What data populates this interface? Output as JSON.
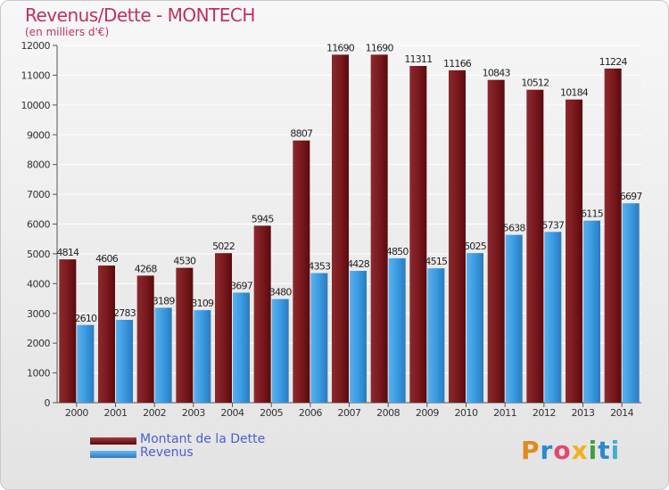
{
  "header": {
    "title": "Revenus/Dette - MONTECH",
    "subtitle": "(en milliers d'€)"
  },
  "legend": {
    "debt_label": "Montant de la Dette",
    "revenue_label": "Revenus"
  },
  "logo": {
    "text": "Proxiti"
  },
  "colors": {
    "debt": "#7a1a1e",
    "revenue": "#3a9be0",
    "title": "#c0305a"
  },
  "chart_data": {
    "type": "bar",
    "categories": [
      "2000",
      "2001",
      "2002",
      "2003",
      "2004",
      "2005",
      "2006",
      "2007",
      "2008",
      "2009",
      "2010",
      "2011",
      "2012",
      "2013",
      "2014"
    ],
    "series": [
      {
        "name": "Montant de la Dette",
        "values": [
          4814,
          4606,
          4268,
          4530,
          5022,
          5945,
          8807,
          11690,
          11690,
          11311,
          11166,
          10843,
          10512,
          10184,
          11224
        ]
      },
      {
        "name": "Revenus",
        "values": [
          2610,
          2783,
          3189,
          3109,
          3697,
          3480,
          4353,
          4428,
          4850,
          4515,
          5025,
          5638,
          5737,
          6115,
          6697
        ]
      }
    ],
    "ylim": [
      0,
      12000
    ],
    "yticks": [
      0,
      1000,
      2000,
      3000,
      4000,
      5000,
      6000,
      7000,
      8000,
      9000,
      10000,
      11000,
      12000
    ],
    "grid": true,
    "title": "Revenus/Dette - MONTECH",
    "ylabel": "(en milliers d'€)",
    "legend_position": "bottom-left"
  }
}
